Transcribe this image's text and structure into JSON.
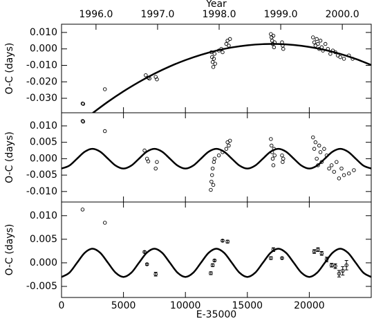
{
  "chart_data": [
    {
      "type": "scatter",
      "x2label": "Year",
      "ylabel": "O-C (days)",
      "xlim": [
        0,
        25000
      ],
      "ylim": [
        -0.0388,
        0.015
      ],
      "x2lim": [
        1995.44,
        2000.47
      ],
      "x2ticks": [
        {
          "value": 1996,
          "label": "1996.0"
        },
        {
          "value": 1997,
          "label": "1997.0"
        },
        {
          "value": 1998,
          "label": "1998.0"
        },
        {
          "value": 1999,
          "label": "1999.0"
        },
        {
          "value": 2000,
          "label": "2000.0"
        }
      ],
      "yticks": [
        {
          "value": 0.01,
          "label": "0.010"
        },
        {
          "value": 0,
          "label": "0.000"
        },
        {
          "value": -0.01,
          "label": "-0.010"
        },
        {
          "value": -0.02,
          "label": "-0.020"
        },
        {
          "value": -0.03,
          "label": "-0.030"
        }
      ],
      "points": {
        "x": [
          1700,
          1750,
          3500,
          6800,
          7000,
          7100,
          7600,
          7700,
          12100,
          12150,
          12200,
          12250,
          12300,
          12350,
          12400,
          12700,
          12900,
          13000,
          13300,
          13400,
          13500,
          13600,
          16900,
          16950,
          17000,
          17050,
          17100,
          17150,
          17200,
          17800,
          17850,
          17900,
          20300,
          20400,
          20500,
          20600,
          20700,
          20800,
          20900,
          21000,
          21100,
          21300,
          21500,
          21700,
          21900,
          22100,
          22300,
          22500,
          22800,
          23200,
          23500
        ],
        "values": [
          -0.0332,
          -0.0334,
          -0.0245,
          -0.016,
          -0.0175,
          -0.018,
          -0.017,
          -0.0185,
          -0.002,
          -0.005,
          -0.008,
          -0.011,
          -0.006,
          -0.003,
          -0.009,
          -0.001,
          0.0,
          -0.002,
          0.003,
          0.005,
          0.002,
          0.006,
          0.009,
          0.007,
          0.005,
          0.003,
          0.008,
          0.001,
          0.004,
          0.004,
          0.002,
          0.0,
          0.007,
          0.004,
          0.002,
          0.006,
          0.003,
          0.0,
          0.005,
          0.001,
          -0.001,
          0.003,
          0.0,
          -0.003,
          -0.001,
          -0.002,
          -0.004,
          -0.005,
          -0.006,
          -0.004,
          -0.006
        ]
      },
      "curve": {
        "x": [
          2500,
          3750,
          5000,
          6250,
          7500,
          8750,
          10000,
          11250,
          12500,
          13750,
          15000,
          16250,
          17500,
          18750,
          20000,
          21250,
          22500,
          23750,
          25000
        ],
        "values": [
          -0.03905,
          -0.03211,
          -0.0258,
          -0.02011,
          -0.01505,
          -0.01061,
          -0.0068,
          -0.00361,
          -0.00105,
          0.00089,
          0.0022,
          0.00289,
          0.00295,
          0.00239,
          0.0012,
          -0.00061,
          -0.00305,
          -0.00611,
          -0.0098
        ]
      }
    },
    {
      "type": "scatter",
      "ylabel": "O-C (days)",
      "xlim": [
        0,
        25000
      ],
      "ylim": [
        -0.0132,
        0.014
      ],
      "yticks": [
        {
          "value": 0.01,
          "label": "0.010"
        },
        {
          "value": 0.005,
          "label": "0.005"
        },
        {
          "value": 0,
          "label": "0.000"
        },
        {
          "value": -0.005,
          "label": "-0.005"
        },
        {
          "value": -0.01,
          "label": "-0.010"
        }
      ],
      "points": {
        "x": [
          1700,
          1750,
          3500,
          6700,
          6900,
          7000,
          7600,
          7700,
          12050,
          12100,
          12150,
          12200,
          12250,
          12300,
          12350,
          12700,
          13000,
          13300,
          13400,
          13500,
          13600,
          16900,
          16950,
          17000,
          17050,
          17100,
          17150,
          17200,
          17800,
          17850,
          17900,
          20300,
          20400,
          20500,
          20600,
          20700,
          20800,
          20900,
          21000,
          21200,
          21400,
          21600,
          21800,
          22000,
          22200,
          22400,
          22600,
          22800,
          23200,
          23600
        ],
        "values": [
          0.0115,
          0.0113,
          0.0084,
          0.0025,
          0.0,
          -0.0008,
          -0.003,
          -0.001,
          -0.0095,
          -0.007,
          -0.005,
          -0.003,
          -0.008,
          -0.001,
          0.0,
          0.001,
          0.002,
          0.003,
          0.005,
          0.004,
          0.0055,
          0.006,
          0.004,
          0.002,
          0.0,
          -0.002,
          0.003,
          0.001,
          0.001,
          -0.001,
          0.0,
          0.0065,
          0.003,
          0.005,
          0.0,
          -0.002,
          0.004,
          0.002,
          -0.001,
          0.003,
          0.001,
          -0.003,
          -0.002,
          -0.004,
          -0.001,
          -0.006,
          -0.003,
          -0.005,
          -0.0045,
          -0.0035
        ]
      },
      "curve": {
        "x": [
          0,
          625,
          1250,
          1875,
          2500,
          3125,
          3750,
          4375,
          5000,
          5625,
          6250,
          6875,
          7500,
          8125,
          8750,
          9375,
          10000,
          10625,
          11250,
          11875,
          12500,
          13125,
          13750,
          14375,
          15000,
          15625,
          16250,
          16875,
          17500,
          18125,
          18750,
          19375,
          20000,
          20625,
          21250,
          21875,
          22500,
          23125,
          23750,
          24375,
          25000
        ],
        "values": [
          -0.003,
          -0.00212,
          0,
          0.00212,
          0.003,
          0.00212,
          0,
          -0.00212,
          -0.003,
          -0.00212,
          0,
          0.00212,
          0.003,
          0.00212,
          0,
          -0.00212,
          -0.003,
          -0.00212,
          0,
          0.00212,
          0.003,
          0.00212,
          0,
          -0.00212,
          -0.003,
          -0.00212,
          0,
          0.00212,
          0.003,
          0.00212,
          0,
          -0.00212,
          -0.003,
          -0.00212,
          0,
          0.00212,
          0.003,
          0.00212,
          0,
          -0.00212,
          -0.003
        ]
      }
    },
    {
      "type": "errorbar",
      "ylabel": "O-C (days)",
      "xlabel": "E-35000",
      "xlim": [
        0,
        25000
      ],
      "ylim": [
        -0.00735,
        0.0129
      ],
      "xticks": [
        0,
        5000,
        10000,
        15000,
        20000
      ],
      "yticks": [
        {
          "value": 0.01,
          "label": "0.010"
        },
        {
          "value": 0.005,
          "label": "0.005"
        },
        {
          "value": 0,
          "label": "0.000"
        },
        {
          "value": -0.005,
          "label": "-0.005"
        }
      ],
      "points": {
        "x": [
          1700,
          3500,
          6700,
          6900,
          7600,
          12050,
          12200,
          12350,
          13000,
          13400,
          16900,
          17100,
          17800,
          20400,
          20700,
          21000,
          21400,
          21800,
          22100,
          22400,
          22700,
          23000
        ],
        "values": [
          0.0113,
          0.0085,
          0.0023,
          -0.0003,
          -0.0024,
          -0.0022,
          -0.0005,
          0.0005,
          0.0047,
          0.0045,
          0.001,
          0.0028,
          0.001,
          0.0024,
          0.0028,
          0.002,
          0.0007,
          -0.0005,
          -0.0007,
          -0.0023,
          -0.0017,
          -0.0005
        ],
        "errors": [
          null,
          null,
          0.0002,
          0.0002,
          0.0004,
          0.0003,
          0.0003,
          0.0002,
          0.0002,
          0.0003,
          0.0003,
          0.0004,
          0.0002,
          0.0004,
          0.0004,
          0.0004,
          0.0005,
          0.0004,
          0.0005,
          0.0007,
          0.0009,
          0.001
        ]
      },
      "curve": {
        "x": [
          0,
          625,
          1250,
          1875,
          2500,
          3125,
          3750,
          4375,
          5000,
          5625,
          6250,
          6875,
          7500,
          8125,
          8750,
          9375,
          10000,
          10625,
          11250,
          11875,
          12500,
          13125,
          13750,
          14375,
          15000,
          15625,
          16250,
          16875,
          17500,
          18125,
          18750,
          19375,
          20000,
          20625,
          21250,
          21875,
          22500,
          23125,
          23750,
          24375,
          25000
        ],
        "values": [
          -0.003,
          -0.00212,
          0,
          0.00212,
          0.003,
          0.00212,
          0,
          -0.00212,
          -0.003,
          -0.00212,
          0,
          0.00212,
          0.003,
          0.00212,
          0,
          -0.00212,
          -0.003,
          -0.00212,
          0,
          0.00212,
          0.003,
          0.00212,
          0,
          -0.00212,
          -0.003,
          -0.00212,
          0,
          0.00212,
          0.003,
          0.00212,
          0,
          -0.00212,
          -0.003,
          -0.00212,
          0,
          0.00212,
          0.003,
          0.00212,
          0,
          -0.00212,
          -0.003
        ]
      }
    }
  ]
}
